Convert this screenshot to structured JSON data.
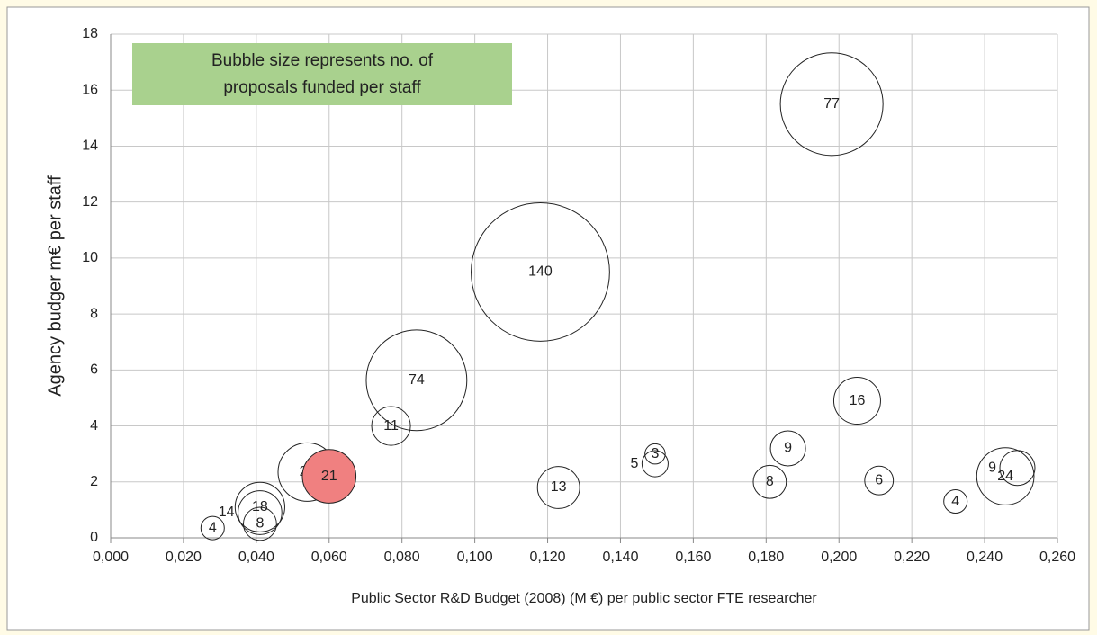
{
  "chart_data": {
    "type": "bubble",
    "xlabel": "Public Sector R&D Budget (2008) (M €)  per  public sector FTE researcher",
    "ylabel": "Agency budger m€ per staff",
    "annotation": [
      "Bubble size represents no. of",
      "proposals funded per staff"
    ],
    "annotation_color": "#a9d18e",
    "xlim": [
      0,
      0.26
    ],
    "xticks": [
      {
        "value": 0,
        "label": "0,000"
      },
      {
        "value": 0.02,
        "label": "0,020"
      },
      {
        "value": 0.04,
        "label": "0,040"
      },
      {
        "value": 0.06,
        "label": "0,060"
      },
      {
        "value": 0.08,
        "label": "0,080"
      },
      {
        "value": 0.1,
        "label": "0,100"
      },
      {
        "value": 0.12,
        "label": "0,120"
      },
      {
        "value": 0.14,
        "label": "0,140"
      },
      {
        "value": 0.16,
        "label": "0,160"
      },
      {
        "value": 0.18,
        "label": "0,180"
      },
      {
        "value": 0.2,
        "label": "0,200"
      },
      {
        "value": 0.22,
        "label": "0,220"
      },
      {
        "value": 0.24,
        "label": "0,240"
      },
      {
        "value": 0.26,
        "label": "0,260"
      }
    ],
    "ylim": [
      0,
      18
    ],
    "yticks": [
      0,
      2,
      4,
      6,
      8,
      10,
      12,
      14,
      16,
      18
    ],
    "grid": true,
    "series": [
      {
        "x": [
          0.028,
          0.041,
          0.041,
          0.041,
          0.054,
          0.077,
          0.084,
          0.118,
          0.198,
          0.123,
          0.1495,
          0.1495,
          0.181,
          0.186,
          0.205,
          0.211,
          0.232,
          0.2457,
          0.249,
          0.06
        ],
        "y": [
          0.35,
          1.1,
          0.9,
          0.5,
          2.35,
          4.0,
          5.63,
          9.5,
          15.5,
          1.8,
          3.0,
          2.65,
          2.0,
          3.2,
          4.9,
          2.05,
          1.3,
          2.2,
          2.5,
          2.2
        ],
        "sizes": [
          4,
          18,
          14,
          8,
          25,
          11,
          74,
          140,
          77,
          13,
          3,
          5,
          8,
          9,
          16,
          6,
          4,
          24,
          9,
          21
        ],
        "colors": [
          null,
          null,
          null,
          null,
          null,
          null,
          null,
          null,
          null,
          null,
          null,
          null,
          null,
          null,
          null,
          null,
          null,
          null,
          null,
          "#f08080"
        ]
      }
    ]
  }
}
